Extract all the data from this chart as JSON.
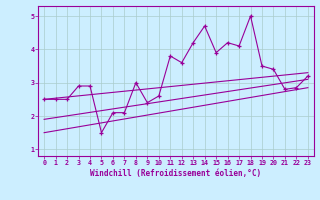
{
  "xlabel": "Windchill (Refroidissement éolien,°C)",
  "bg_color": "#cceeff",
  "line_color": "#990099",
  "grid_color": "#aacccc",
  "xlim": [
    -0.5,
    23.5
  ],
  "ylim": [
    0.8,
    5.3
  ],
  "xticks": [
    0,
    1,
    2,
    3,
    4,
    5,
    6,
    7,
    8,
    9,
    10,
    11,
    12,
    13,
    14,
    15,
    16,
    17,
    18,
    19,
    20,
    21,
    22,
    23
  ],
  "yticks": [
    1,
    2,
    3,
    4,
    5
  ],
  "scatter_x": [
    0,
    1,
    2,
    3,
    4,
    5,
    6,
    7,
    8,
    9,
    10,
    11,
    12,
    13,
    14,
    15,
    16,
    17,
    18,
    19,
    20,
    21,
    22,
    23
  ],
  "scatter_y": [
    2.5,
    2.5,
    2.5,
    2.9,
    2.9,
    1.5,
    2.1,
    2.1,
    3.0,
    2.4,
    2.6,
    3.8,
    3.6,
    4.2,
    4.7,
    3.9,
    4.2,
    4.1,
    5.0,
    3.5,
    3.4,
    2.8,
    2.85,
    3.2
  ],
  "reg_line1_x": [
    0,
    23
  ],
  "reg_line1_y": [
    2.5,
    3.3
  ],
  "reg_line2_x": [
    0,
    23
  ],
  "reg_line2_y": [
    1.9,
    3.1
  ],
  "reg_line3_x": [
    0,
    23
  ],
  "reg_line3_y": [
    1.5,
    2.85
  ]
}
